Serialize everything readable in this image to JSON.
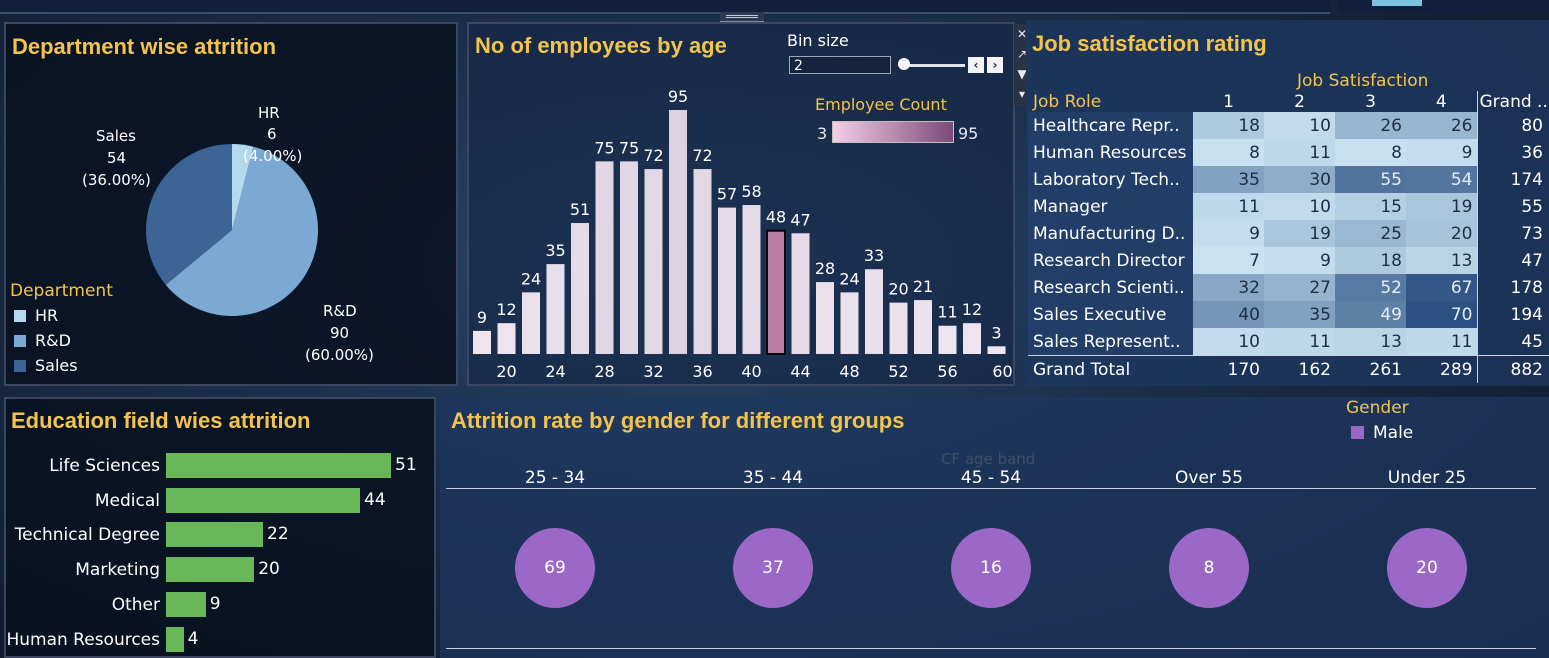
{
  "dept_panel": {
    "title": "Department wise attrition",
    "legend_title": "Department",
    "slice_labels": [
      {
        "name": "HR",
        "value": "6",
        "pct": "(4.00%)"
      },
      {
        "name": "R&D",
        "value": "90",
        "pct": "(60.00%)"
      },
      {
        "name": "Sales",
        "value": "54",
        "pct": "(36.00%)"
      }
    ]
  },
  "age_panel": {
    "title": "No of employees by age",
    "bin_size_label": "Bin size",
    "bin_size_value": "2",
    "color_legend_title": "Employee Count",
    "color_min": "3",
    "color_max": "95",
    "highlight_bin": 42
  },
  "job_panel": {
    "title": "Job satisfaction rating",
    "col_header": "Job Satisfaction",
    "row_header": "Job Role",
    "columns": [
      "1",
      "2",
      "3",
      "4",
      "Grand .."
    ],
    "rows": [
      {
        "role": "Healthcare Repr..",
        "vals": [
          18,
          10,
          26,
          26
        ],
        "total": 80
      },
      {
        "role": "Human Resources",
        "vals": [
          8,
          11,
          8,
          9
        ],
        "total": 36
      },
      {
        "role": "Laboratory Tech..",
        "vals": [
          35,
          30,
          55,
          54
        ],
        "total": 174
      },
      {
        "role": "Manager",
        "vals": [
          11,
          10,
          15,
          19
        ],
        "total": 55
      },
      {
        "role": "Manufacturing D..",
        "vals": [
          9,
          19,
          25,
          20
        ],
        "total": 73
      },
      {
        "role": "Research Director",
        "vals": [
          7,
          9,
          18,
          13
        ],
        "total": 47
      },
      {
        "role": "Research Scienti..",
        "vals": [
          32,
          27,
          52,
          67
        ],
        "total": 178
      },
      {
        "role": "Sales Executive",
        "vals": [
          40,
          35,
          49,
          70
        ],
        "total": 194
      },
      {
        "role": "Sales Represent..",
        "vals": [
          10,
          11,
          13,
          11
        ],
        "total": 45
      }
    ],
    "grand_total_label": "Grand Total",
    "grand_totals": [
      170,
      162,
      261,
      289,
      882
    ]
  },
  "edu_panel": {
    "title": "Education field wies attrition"
  },
  "gender_panel": {
    "title": "Attrition rate by gender for different groups",
    "legend_title": "Gender",
    "legend_item": "Male",
    "band_header": "CF age band",
    "colors": {
      "male": "#9c68c8"
    }
  },
  "chart_data": [
    {
      "type": "pie",
      "title": "Department wise attrition",
      "categories": [
        "HR",
        "R&D",
        "Sales"
      ],
      "values": [
        6,
        90,
        54
      ],
      "colors": [
        "#b4d8ee",
        "#7ba9d4",
        "#3c6494"
      ]
    },
    {
      "type": "bar",
      "title": "No of employees by age",
      "x": [
        18,
        20,
        22,
        24,
        26,
        28,
        30,
        32,
        34,
        36,
        38,
        40,
        42,
        44,
        46,
        48,
        50,
        52,
        54,
        56,
        58,
        60
      ],
      "values": [
        9,
        12,
        24,
        35,
        51,
        75,
        75,
        72,
        95,
        72,
        57,
        58,
        48,
        47,
        28,
        24,
        33,
        20,
        21,
        11,
        12,
        3
      ],
      "tick_labels": [
        "20",
        "24",
        "28",
        "32",
        "36",
        "40",
        "44",
        "48",
        "52",
        "56",
        "60"
      ]
    },
    {
      "type": "heatmap",
      "title": "Job satisfaction rating"
    },
    {
      "type": "bar",
      "title": "Education field wies attrition",
      "categories": [
        "Life Sciences",
        "Medical",
        "Technical Degree",
        "Marketing",
        "Other",
        "Human Resources"
      ],
      "values": [
        51,
        44,
        22,
        20,
        9,
        4
      ],
      "colors": {
        "bar": "#6ab75a"
      }
    },
    {
      "type": "scatter",
      "title": "Attrition rate by gender for different groups",
      "categories": [
        "25 - 34",
        "35 - 44",
        "45 - 54",
        "Over 55",
        "Under 25"
      ],
      "values": [
        69,
        37,
        16,
        8,
        20
      ],
      "series": [
        {
          "name": "Male",
          "values": [
            69,
            37,
            16,
            8,
            20
          ]
        }
      ]
    }
  ]
}
